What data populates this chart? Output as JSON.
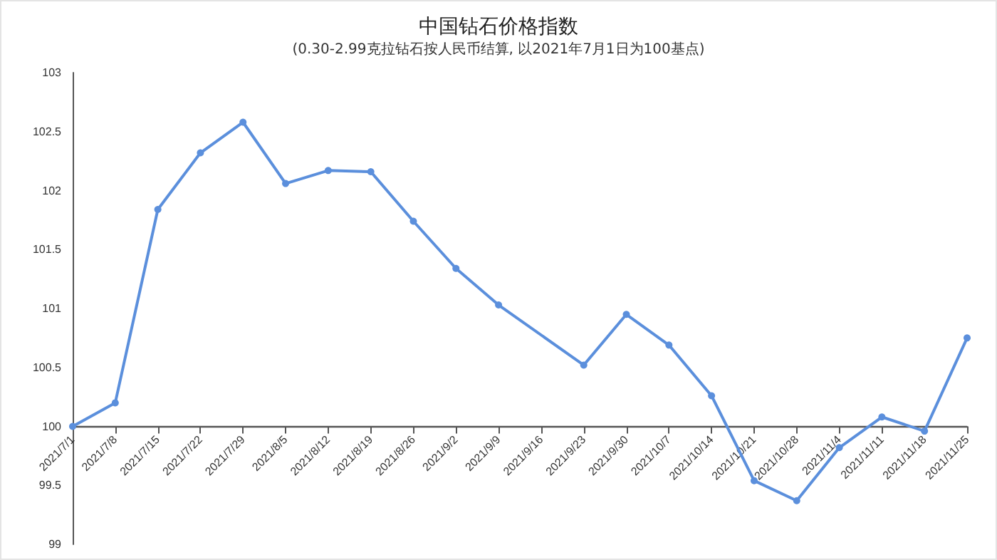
{
  "chart_data": {
    "type": "line",
    "title": "中国钻石价格指数",
    "subtitle": "(0.30-2.99克拉钻石按人民币结算, 以2021年7月1日为100基点)",
    "categories": [
      "2021/7/1",
      "2021/7/8",
      "2021/7/15",
      "2021/7/22",
      "2021/7/29",
      "2021/8/5",
      "2021/8/12",
      "2021/8/19",
      "2021/8/26",
      "2021/9/2",
      "2021/9/9",
      "2021/9/16",
      "2021/9/23",
      "2021/9/30",
      "2021/10/7",
      "2021/10/14",
      "2021/10/21",
      "2021/10/28",
      "2021/11/4",
      "2021/11/11",
      "2021/11/18",
      "2021/11/25"
    ],
    "series": [
      {
        "color": "#5b8fdc",
        "values": [
          100,
          100.2,
          101.84,
          102.32,
          102.58,
          102.06,
          102.17,
          102.16,
          101.74,
          101.34,
          101.03,
          null,
          100.52,
          100.95,
          100.69,
          100.26,
          99.54,
          99.37,
          99.82,
          100.08,
          99.96,
          100.75
        ]
      }
    ],
    "ylim": [
      99,
      103
    ],
    "yticks": [
      99,
      99.5,
      100,
      100.5,
      101,
      101.5,
      102,
      102.5,
      103
    ],
    "ref_lines": [
      {
        "axis": "y",
        "value": 100
      }
    ],
    "grid": false,
    "marker": "circle",
    "line_style": "solid"
  }
}
